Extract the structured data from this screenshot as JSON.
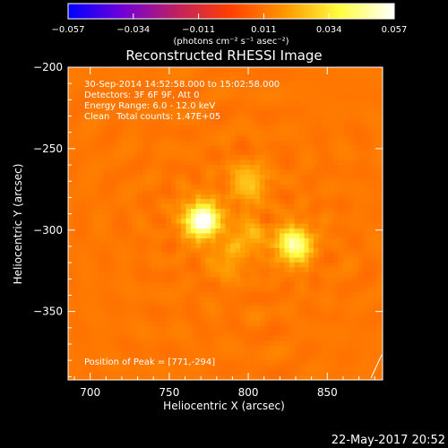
{
  "chart_data": {
    "type": "heatmap",
    "title": "Reconstructed RHESSI Image",
    "xlabel": "Heliocentric X (arcsec)",
    "ylabel": "Heliocentric Y (arcsec)",
    "xlim": [
      686,
      885
    ],
    "ylim": [
      -392,
      -200
    ],
    "xticks": [
      700,
      750,
      800,
      850
    ],
    "yticks": [
      -200,
      -250,
      -300,
      -350
    ],
    "colorbar": {
      "min": -0.057,
      "max": 0.057,
      "ticks": [
        "−0.057",
        "−0.034",
        "−0.011",
        "0.011",
        "0.034",
        "0.057"
      ],
      "unit_label": "(photons cm⁻² s⁻¹ asec⁻²)",
      "colors": [
        "#0000ff",
        "#7000d8",
        "#c02060",
        "#ff4000",
        "#ff9800",
        "#ffff40",
        "#ffffff"
      ]
    },
    "sources": [
      {
        "x": 771,
        "y": -294,
        "peak": 0.057
      },
      {
        "x": 829,
        "y": -309,
        "peak": 0.045
      },
      {
        "x": 800,
        "y": -271,
        "peak": 0.025
      },
      {
        "x": 800,
        "y": -303,
        "peak": 0.02
      },
      {
        "x": 787,
        "y": -319,
        "peak": 0.017
      }
    ],
    "background_level": 0.012,
    "annotations": {
      "time": "30-Sep-2014 14:52:58.000 to 15:02:58.000",
      "detectors": "Detectors: 3F 6F 9F, Att 0",
      "energy": "Energy Range: 6.0 - 12.0 keV",
      "clean": "Clean",
      "counts": "Total counts: 1.47E+05",
      "peak": "Position of Peak = [771,-294]"
    },
    "date_stamp": "22-May-2017 20:52"
  }
}
